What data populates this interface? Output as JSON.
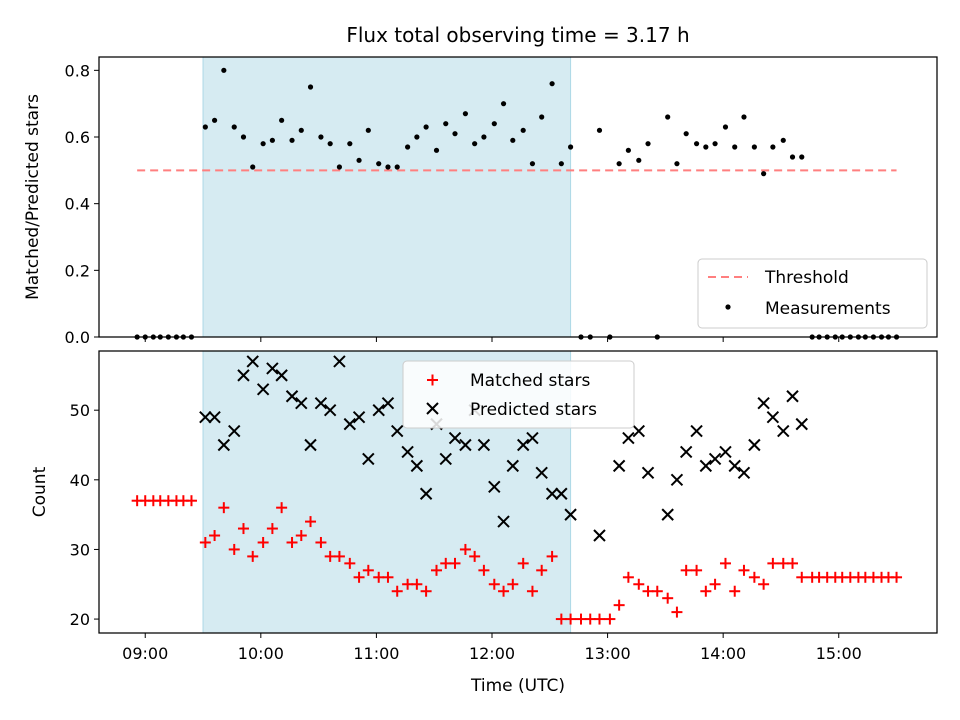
{
  "colors": {
    "shade": "#add8e6",
    "threshold": "#ff7f7f",
    "matched": "#ff0000",
    "predicted": "#000000",
    "measurement": "#000000"
  },
  "chart_data": [
    {
      "type": "scatter",
      "title": "Flux total observing time = 3.17 h",
      "xlabel": "",
      "ylabel": "Matched/Predicted stars",
      "ylim": [
        0,
        0.84
      ],
      "yticks": [
        0.0,
        0.2,
        0.4,
        0.6,
        0.8
      ],
      "ytick_labels": [
        "0.0",
        "0.2",
        "0.4",
        "0.6",
        "0.8"
      ],
      "grid": false,
      "legend": "lower-right",
      "shaded_x": [
        9.5,
        12.68
      ],
      "series": [
        {
          "name": "Threshold",
          "kind": "dashed-line",
          "x": [
            8.93,
            15.5
          ],
          "y": [
            0.5,
            0.5
          ]
        },
        {
          "name": "Measurements",
          "kind": "points",
          "x": [
            8.93,
            9.0,
            9.07,
            9.13,
            9.2,
            9.27,
            9.33,
            9.4,
            9.52,
            9.6,
            9.68,
            9.77,
            9.85,
            9.93,
            10.02,
            10.1,
            10.18,
            10.27,
            10.35,
            10.43,
            10.52,
            10.6,
            10.68,
            10.77,
            10.85,
            10.93,
            11.02,
            11.1,
            11.18,
            11.27,
            11.35,
            11.43,
            11.52,
            11.6,
            11.68,
            11.77,
            11.85,
            11.93,
            12.02,
            12.1,
            12.18,
            12.27,
            12.35,
            12.43,
            12.52,
            12.6,
            12.68,
            12.77,
            12.85,
            12.93,
            13.02,
            13.1,
            13.18,
            13.27,
            13.35,
            13.43,
            13.52,
            13.6,
            13.68,
            13.77,
            13.85,
            13.93,
            14.02,
            14.1,
            14.18,
            14.27,
            14.35,
            14.43,
            14.52,
            14.6,
            14.68,
            14.77,
            14.83,
            14.9,
            14.97,
            15.03,
            15.1,
            15.17,
            15.23,
            15.3,
            15.37,
            15.43,
            15.5
          ],
          "y": [
            0.0,
            0.0,
            0.0,
            0.0,
            0.0,
            0.0,
            0.0,
            0.0,
            0.63,
            0.65,
            0.8,
            0.63,
            0.6,
            0.51,
            0.58,
            0.59,
            0.65,
            0.59,
            0.62,
            0.75,
            0.6,
            0.58,
            0.51,
            0.58,
            0.53,
            0.62,
            0.52,
            0.51,
            0.51,
            0.57,
            0.6,
            0.63,
            0.56,
            0.64,
            0.61,
            0.67,
            0.58,
            0.6,
            0.64,
            0.7,
            0.59,
            0.62,
            0.52,
            0.66,
            0.76,
            0.52,
            0.57,
            0.0,
            0.0,
            0.62,
            0.0,
            0.52,
            0.56,
            0.53,
            0.58,
            0.0,
            0.66,
            0.52,
            0.61,
            0.58,
            0.57,
            0.58,
            0.63,
            0.57,
            0.66,
            0.57,
            0.49,
            0.57,
            0.59,
            0.54,
            0.54,
            0.0,
            0.0,
            0.0,
            0.0,
            0.0,
            0.0,
            0.0,
            0.0,
            0.0,
            0.0,
            0.0,
            0.0
          ]
        }
      ]
    },
    {
      "type": "scatter",
      "title": "",
      "xlabel": "Time (UTC)",
      "ylabel": "Count",
      "xlim": [
        8.6,
        15.85
      ],
      "ylim": [
        18,
        58.5
      ],
      "xticks": [
        9,
        10,
        11,
        12,
        13,
        14,
        15
      ],
      "xtick_labels": [
        "09:00",
        "10:00",
        "11:00",
        "12:00",
        "13:00",
        "14:00",
        "15:00"
      ],
      "yticks": [
        20,
        30,
        40,
        50
      ],
      "ytick_labels": [
        "20",
        "30",
        "40",
        "50"
      ],
      "grid": false,
      "legend": "upper-center",
      "shaded_x": [
        9.5,
        12.68
      ],
      "series": [
        {
          "name": "Matched stars",
          "marker": "plus",
          "x": [
            8.93,
            9.0,
            9.07,
            9.13,
            9.2,
            9.27,
            9.33,
            9.4,
            9.52,
            9.6,
            9.68,
            9.77,
            9.85,
            9.93,
            10.02,
            10.1,
            10.18,
            10.27,
            10.35,
            10.43,
            10.52,
            10.6,
            10.68,
            10.77,
            10.85,
            10.93,
            11.02,
            11.1,
            11.18,
            11.27,
            11.35,
            11.43,
            11.52,
            11.6,
            11.68,
            11.77,
            11.85,
            11.93,
            12.02,
            12.1,
            12.18,
            12.27,
            12.35,
            12.43,
            12.52,
            12.6,
            12.68,
            12.77,
            12.85,
            12.93,
            13.02,
            13.1,
            13.18,
            13.27,
            13.35,
            13.43,
            13.52,
            13.6,
            13.68,
            13.77,
            13.85,
            13.93,
            14.02,
            14.1,
            14.18,
            14.27,
            14.35,
            14.43,
            14.52,
            14.6,
            14.68,
            14.77,
            14.83,
            14.9,
            14.97,
            15.03,
            15.1,
            15.17,
            15.23,
            15.3,
            15.37,
            15.43,
            15.5
          ],
          "y": [
            37,
            37,
            37,
            37,
            37,
            37,
            37,
            37,
            31,
            32,
            36,
            30,
            33,
            29,
            31,
            33,
            36,
            31,
            32,
            34,
            31,
            29,
            29,
            28,
            26,
            27,
            26,
            26,
            24,
            25,
            25,
            24,
            27,
            28,
            28,
            30,
            29,
            27,
            25,
            24,
            25,
            28,
            24,
            27,
            29,
            20,
            20,
            20,
            20,
            20,
            20,
            22,
            26,
            25,
            24,
            24,
            23,
            21,
            27,
            27,
            24,
            25,
            28,
            24,
            27,
            26,
            25,
            28,
            28,
            28,
            26,
            26,
            26,
            26,
            26,
            26,
            26,
            26,
            26,
            26,
            26,
            26,
            26
          ]
        },
        {
          "name": "Predicted stars",
          "marker": "x",
          "x": [
            9.52,
            9.6,
            9.68,
            9.77,
            9.85,
            9.93,
            10.02,
            10.1,
            10.18,
            10.27,
            10.35,
            10.43,
            10.52,
            10.6,
            10.68,
            10.77,
            10.85,
            10.93,
            11.02,
            11.1,
            11.18,
            11.27,
            11.35,
            11.43,
            11.52,
            11.6,
            11.68,
            11.77,
            11.85,
            11.93,
            12.02,
            12.1,
            12.18,
            12.27,
            12.35,
            12.43,
            12.52,
            12.6,
            12.68,
            12.93,
            13.1,
            13.18,
            13.27,
            13.35,
            13.52,
            13.6,
            13.68,
            13.77,
            13.85,
            13.93,
            14.02,
            14.1,
            14.18,
            14.27,
            14.35,
            14.43,
            14.52,
            14.6,
            14.68
          ],
          "y": [
            49,
            49,
            45,
            47,
            55,
            57,
            53,
            56,
            55,
            52,
            51,
            45,
            51,
            50,
            57,
            48,
            49,
            43,
            50,
            51,
            47,
            44,
            42,
            38,
            48,
            43,
            46,
            45,
            50,
            45,
            39,
            34,
            42,
            45,
            46,
            41,
            38,
            38,
            35,
            32,
            42,
            46,
            47,
            41,
            35,
            40,
            44,
            47,
            42,
            43,
            44,
            42,
            41,
            45,
            51,
            49,
            47,
            52,
            48
          ]
        }
      ]
    }
  ]
}
